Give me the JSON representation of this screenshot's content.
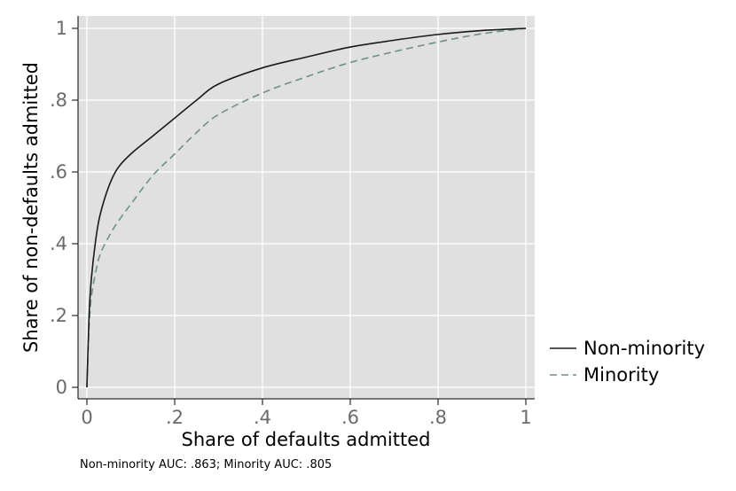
{
  "chart_data": {
    "type": "line",
    "title": "",
    "xlabel": "Share of defaults admitted",
    "ylabel": "Share of non-defaults admitted",
    "xlim": [
      0,
      1
    ],
    "ylim": [
      0,
      1
    ],
    "x_ticks": [
      0,
      0.2,
      0.4,
      0.6,
      0.8,
      1
    ],
    "x_tick_labels": [
      "0",
      ".2",
      ".4",
      ".6",
      ".8",
      "1"
    ],
    "y_ticks": [
      0,
      0.2,
      0.4,
      0.6,
      0.8,
      1
    ],
    "y_tick_labels": [
      "0",
      ".2",
      ".4",
      ".6",
      ".8",
      "1"
    ],
    "grid": true,
    "legend_position": "right",
    "note": "Non-minority AUC: .863;  Minority AUC: .805",
    "colors": {
      "plot_background": "#e0e0e0",
      "grid": "#ffffff",
      "non_minority": "#1a1a1a",
      "minority": "#6f8f86"
    },
    "series": [
      {
        "name": "Non-minority",
        "style": "solid",
        "x": [
          0,
          0.005,
          0.01,
          0.02,
          0.03,
          0.05,
          0.07,
          0.1,
          0.15,
          0.2,
          0.25,
          0.3,
          0.4,
          0.5,
          0.6,
          0.7,
          0.8,
          0.9,
          1.0
        ],
        "y": [
          0,
          0.2,
          0.3,
          0.41,
          0.48,
          0.56,
          0.61,
          0.65,
          0.7,
          0.75,
          0.8,
          0.845,
          0.89,
          0.92,
          0.948,
          0.967,
          0.983,
          0.994,
          1.0
        ]
      },
      {
        "name": "Minority",
        "style": "dashed",
        "x": [
          0,
          0.005,
          0.01,
          0.02,
          0.03,
          0.05,
          0.07,
          0.1,
          0.15,
          0.2,
          0.25,
          0.3,
          0.4,
          0.5,
          0.6,
          0.7,
          0.8,
          0.9,
          1.0
        ],
        "y": [
          0,
          0.17,
          0.25,
          0.32,
          0.37,
          0.42,
          0.46,
          0.51,
          0.59,
          0.65,
          0.71,
          0.76,
          0.82,
          0.865,
          0.905,
          0.935,
          0.962,
          0.985,
          1.0
        ]
      }
    ]
  }
}
